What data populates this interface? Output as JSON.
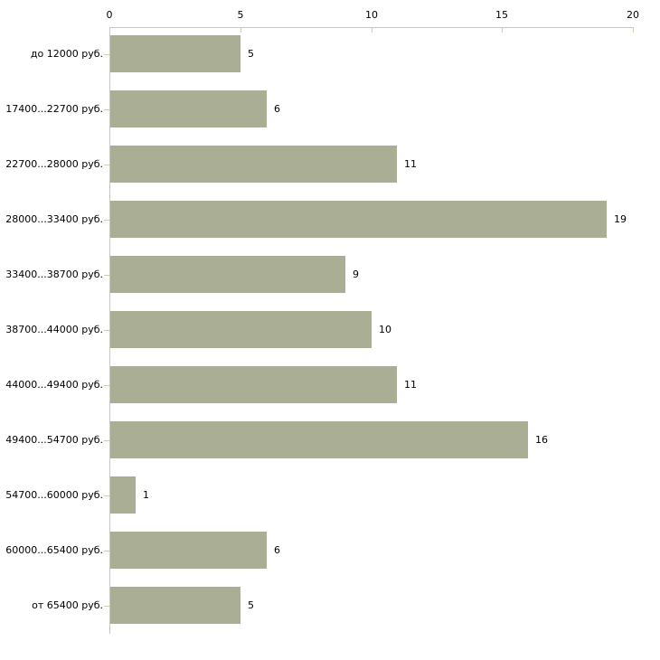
{
  "chart_data": {
    "type": "bar",
    "orientation": "horizontal",
    "title": "",
    "xlabel": "",
    "ylabel": "",
    "categories": [
      "до 12000 руб.",
      "17400...22700 руб.",
      "22700...28000 руб.",
      "28000...33400 руб.",
      "33400...38700 руб.",
      "38700...44000 руб.",
      "44000...49400 руб.",
      "49400...54700 руб.",
      "54700...60000 руб.",
      "60000...65400 руб.",
      "от 65400 руб."
    ],
    "values": [
      5,
      6,
      11,
      19,
      9,
      10,
      11,
      16,
      1,
      6,
      5
    ],
    "value_labels": [
      "5",
      "6",
      "11",
      "19",
      "9",
      "10",
      "11",
      "16",
      "1",
      "6",
      "5"
    ],
    "xlim": [
      0,
      20
    ],
    "xticks": [
      0,
      5,
      10,
      15,
      20
    ],
    "xtick_labels": [
      "0",
      "5",
      "10",
      "15",
      "20"
    ],
    "xaxis_position": "top",
    "grid": false,
    "legend": null,
    "colors": {
      "bar_fill": "#a9ae94",
      "axis_line": "#c6c6c6",
      "tick_mark": "#ccd0aa",
      "text": "#000000",
      "background": "#ffffff"
    }
  }
}
